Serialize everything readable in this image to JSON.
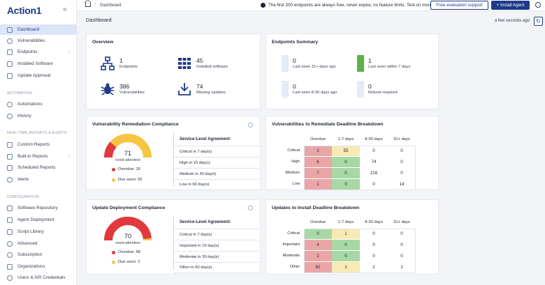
{
  "brand": {
    "logo_text": "Action",
    "logo_suffix": "1"
  },
  "sidebar": {
    "sections": [
      "AUTOMATION",
      "REAL-TIME REPORTS & ALERTS",
      "CONFIGURATION"
    ],
    "items": [
      {
        "label": "Dashboard",
        "icon": "dashboard-icon"
      },
      {
        "label": "Vulnerabilities",
        "icon": "bug-icon"
      },
      {
        "label": "Endpoints",
        "icon": "monitor-icon"
      },
      {
        "label": "Installed Software",
        "icon": "software-icon"
      },
      {
        "label": "Update Approval",
        "icon": "approval-icon"
      },
      {
        "label": "Automations",
        "icon": "automation-icon"
      },
      {
        "label": "History",
        "icon": "history-icon"
      },
      {
        "label": "Custom Reports",
        "icon": "report-icon"
      },
      {
        "label": "Built-in Reports",
        "icon": "report-icon"
      },
      {
        "label": "Scheduled Reports",
        "icon": "calendar-icon"
      },
      {
        "label": "Alerts",
        "icon": "bell-icon"
      },
      {
        "label": "Software Repository",
        "icon": "repository-icon"
      },
      {
        "label": "Agent Deployment",
        "icon": "deploy-icon"
      },
      {
        "label": "Script Library",
        "icon": "script-icon"
      },
      {
        "label": "Advanced",
        "icon": "advanced-icon"
      },
      {
        "label": "Subscription",
        "icon": "subscription-icon"
      },
      {
        "label": "Organizations",
        "icon": "organization-icon"
      },
      {
        "label": "Users & API Credentials",
        "icon": "users-icon"
      }
    ]
  },
  "topbar": {
    "breadcrumb": "Dashboard",
    "promo": "The first 200 endpoints are always free, never expire, no feature limits. Test on more:",
    "free_eval_label": "Free evaluation support",
    "install_agent_label": "+ Install Agent"
  },
  "main": {
    "title": "Dashboard",
    "refresh_text": "a few seconds ago",
    "refresh_icon": "refresh-icon"
  },
  "overview": {
    "title": "Overview",
    "stats": [
      {
        "value": "1",
        "label": "Endpoints",
        "icon": "network-icon"
      },
      {
        "value": "45",
        "label": "Installed software",
        "icon": "grid-icon"
      },
      {
        "value": "386",
        "label": "Vulnerabilities",
        "icon": "bug-icon"
      },
      {
        "value": "74",
        "label": "Missing updates",
        "icon": "download-icon"
      }
    ]
  },
  "endpoints_summary": {
    "title": "Endpoints Summary",
    "items": [
      {
        "value": "0",
        "label": "Last seen 31+ days ago",
        "color": "#e3ecf7"
      },
      {
        "value": "1",
        "label": "Last seen within 7 days",
        "color": "#5fb04a"
      },
      {
        "value": "0",
        "label": "Last seen 8-30 days ago",
        "color": "#e3ecf7"
      },
      {
        "value": "0",
        "label": "Reboot required",
        "color": "#e3ecf7"
      }
    ]
  },
  "vuln_compliance": {
    "title": "Vulnerability Remediation Compliance",
    "value": "71",
    "value_label": "need attention",
    "overdue_label": "Overdue: 16",
    "due_label": "Due soon: 55",
    "overdue_fraction": 0.23,
    "sla_header": "Service-Level Agreement:",
    "sla": [
      "Critical in 7 day(s)",
      "High in 15 day(s)",
      "Medium in 30 day(s)",
      "Low in 60 day(s)"
    ],
    "colors": {
      "overdue": "#e0383e",
      "due": "#f5c542"
    }
  },
  "update_compliance": {
    "title": "Update Deployment Compliance",
    "value": "70",
    "value_label": "need attention",
    "overdue_label": "Overdue: 68",
    "due_label": "Due soon: 2",
    "overdue_fraction": 0.97,
    "sla_header": "Service-Level Agreement:",
    "sla": [
      "Critical in 7 day(s)",
      "Important in 15 day(s)",
      "Moderate in 30 day(s)",
      "Other in 60 day(s)"
    ],
    "colors": {
      "overdue": "#e0383e",
      "due": "#f5c542"
    }
  },
  "vuln_breakdown": {
    "title": "Vulnerabilities to Remediate Deadline Breakdown",
    "columns": [
      "Overdue",
      "1-7 days",
      "8-30 days",
      "31+ days"
    ],
    "rows": [
      {
        "label": "Critical",
        "cells": [
          "2",
          "55",
          "0",
          "0"
        ],
        "tones": [
          "red",
          "yel",
          "wht",
          "wht"
        ]
      },
      {
        "label": "High",
        "cells": [
          "6",
          "0",
          "74",
          "0"
        ],
        "tones": [
          "red",
          "grn",
          "wht",
          "wht"
        ]
      },
      {
        "label": "Medium",
        "cells": [
          "7",
          "0",
          "216",
          "0"
        ],
        "tones": [
          "red",
          "grn",
          "wht",
          "wht"
        ]
      },
      {
        "label": "Low",
        "cells": [
          "1",
          "0",
          "0",
          "14"
        ],
        "tones": [
          "red",
          "grn",
          "wht",
          "wht"
        ]
      }
    ]
  },
  "update_breakdown": {
    "title": "Updates to Install Deadline Breakdown",
    "columns": [
      "Overdue",
      "1-7 days",
      "8-30 days",
      "31+ days"
    ],
    "rows": [
      {
        "label": "Critical",
        "cells": [
          "0",
          "1",
          "0",
          "0"
        ],
        "tones": [
          "grn",
          "yel",
          "wht",
          "wht"
        ]
      },
      {
        "label": "Important",
        "cells": [
          "4",
          "0",
          "0",
          "0"
        ],
        "tones": [
          "red",
          "grn",
          "wht",
          "wht"
        ]
      },
      {
        "label": "Moderate",
        "cells": [
          "2",
          "0",
          "0",
          "0"
        ],
        "tones": [
          "red",
          "grn",
          "wht",
          "wht"
        ]
      },
      {
        "label": "Other",
        "cells": [
          "62",
          "1",
          "2",
          "2"
        ],
        "tones": [
          "red",
          "yel",
          "wht",
          "wht"
        ]
      }
    ]
  }
}
